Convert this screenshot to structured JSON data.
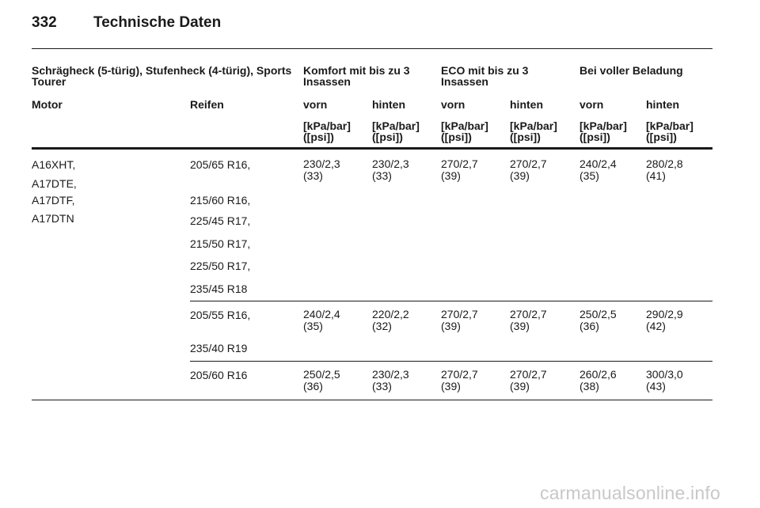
{
  "page": {
    "number": "332",
    "title": "Technische Daten"
  },
  "table": {
    "group_headers": [
      "Schrägheck (5-türig), Stufenheck (4-türig), Sports Tourer",
      "Komfort mit bis zu 3 Insassen",
      "ECO mit bis zu 3 Insassen",
      "Bei voller Beladung"
    ],
    "col_headers": [
      "Motor",
      "Reifen",
      "vorn",
      "hinten",
      "vorn",
      "hinten",
      "vorn",
      "hinten"
    ],
    "unit_label": "[kPa/bar] ([psi])",
    "engines": [
      "A16XHT,",
      "A17DTE,",
      "A17DTF,",
      "A17DTN"
    ],
    "groups": [
      {
        "tyres": [
          "205/65 R16,",
          "215/60 R16,",
          "225/45 R17,",
          "215/50 R17,",
          "225/50 R17,",
          "235/45 R18"
        ],
        "values": [
          [
            "230/2,3",
            "(33)"
          ],
          [
            "230/2,3",
            "(33)"
          ],
          [
            "270/2,7",
            "(39)"
          ],
          [
            "270/2,7",
            "(39)"
          ],
          [
            "240/2,4",
            "(35)"
          ],
          [
            "280/2,8",
            "(41)"
          ]
        ]
      },
      {
        "tyres": [
          "205/55 R16,",
          "235/40 R19"
        ],
        "values": [
          [
            "240/2,4",
            "(35)"
          ],
          [
            "220/2,2",
            "(32)"
          ],
          [
            "270/2,7",
            "(39)"
          ],
          [
            "270/2,7",
            "(39)"
          ],
          [
            "250/2,5",
            "(36)"
          ],
          [
            "290/2,9",
            "(42)"
          ]
        ]
      },
      {
        "tyres": [
          "205/60 R16"
        ],
        "values": [
          [
            "250/2,5",
            "(36)"
          ],
          [
            "230/2,3",
            "(33)"
          ],
          [
            "270/2,7",
            "(39)"
          ],
          [
            "270/2,7",
            "(39)"
          ],
          [
            "260/2,6",
            "(38)"
          ],
          [
            "300/3,0",
            "(43)"
          ]
        ]
      }
    ]
  },
  "watermark": "carmanualsonline.info"
}
